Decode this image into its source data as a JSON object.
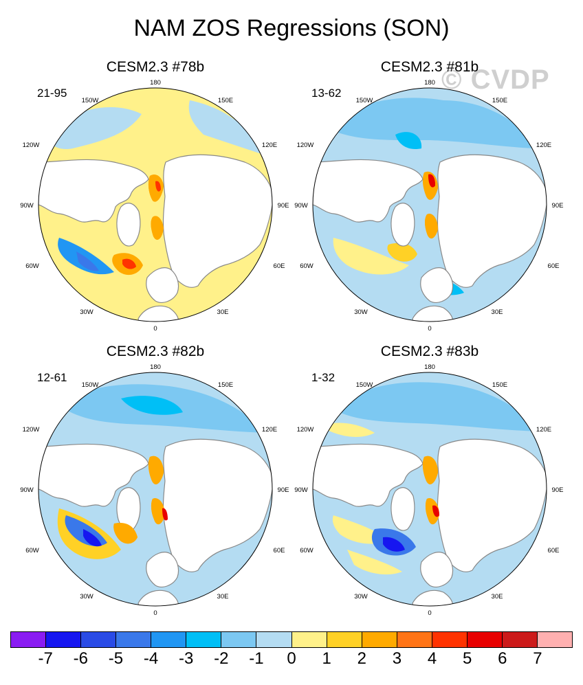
{
  "title": "NAM ZOS Regressions (SON)",
  "watermark": "© CVDP",
  "panels": [
    {
      "name": "CESM2.3 #78b",
      "years": "21-95"
    },
    {
      "name": "CESM2.3 #81b",
      "years": "13-62"
    },
    {
      "name": "CESM2.3 #82b",
      "years": "12-61"
    },
    {
      "name": "CESM2.3 #83b",
      "years": "1-32"
    }
  ],
  "longitude_labels": {
    "top": "180",
    "upper_left": "150W",
    "upper_right": "150E",
    "left_upper": "120W",
    "right_upper": "120E",
    "left": "90W",
    "right": "90E",
    "left_lower": "60W",
    "right_lower": "60E",
    "lower_left": "30W",
    "lower_right": "30E",
    "bottom": "0"
  },
  "colorbar": {
    "colors": [
      "#8a1cf2",
      "#1616f0",
      "#2a4be6",
      "#3a78ea",
      "#2196f3",
      "#00bff6",
      "#7cc8f2",
      "#b4dcf2",
      "#fff18a",
      "#ffd126",
      "#ffaa00",
      "#ff7416",
      "#ff3300",
      "#e80000",
      "#cc1a1a",
      "#ffb0b0"
    ],
    "labels": [
      "-7",
      "-6",
      "-5",
      "-4",
      "-3",
      "-2",
      "-1",
      "0",
      "1",
      "2",
      "3",
      "4",
      "5",
      "6",
      "7"
    ]
  }
}
